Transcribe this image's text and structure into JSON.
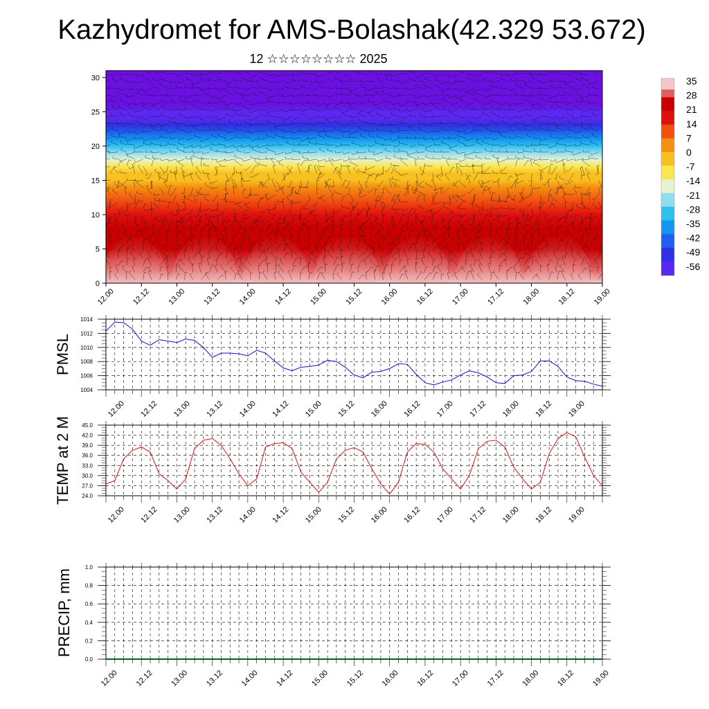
{
  "title": "Kazhydromet for AMS-Bolashak(42.329 53.672)",
  "subtitle": "12 ☆☆☆☆☆☆☆☆ 2025",
  "chart_data": [
    {
      "type": "heatmap",
      "name": "temperature-wind-cross-section",
      "y_ticks": [
        "0",
        "5",
        "10",
        "15",
        "20",
        "25",
        "30"
      ],
      "ylim": [
        0,
        31
      ],
      "x_ticks": [
        "12.00",
        "12.12",
        "13.00",
        "13.12",
        "14.00",
        "14.12",
        "15.00",
        "15.12",
        "16.00",
        "16.12",
        "17.00",
        "17.12",
        "18.00",
        "18.12",
        "19.00"
      ],
      "colorbar": {
        "ticks": [
          "35",
          "28",
          "21",
          "14",
          "7",
          "0",
          "-7",
          "-14",
          "-21",
          "-28",
          "-35",
          "-42",
          "-49",
          "-56"
        ],
        "range": [
          -63,
          38
        ]
      },
      "temperature_profile": {
        "levels": [
          0,
          2,
          5,
          8,
          10,
          12,
          14,
          15,
          16,
          17,
          18,
          19,
          20,
          21,
          22,
          23,
          24,
          25,
          26,
          27,
          31
        ],
        "values": [
          38,
          32,
          28,
          23,
          21,
          14,
          7,
          0,
          -5,
          -9,
          -14,
          -21,
          -28,
          -35,
          -42,
          -49,
          -56,
          -60,
          -63,
          -63,
          -63
        ]
      }
    },
    {
      "type": "line",
      "name": "pmsl",
      "ylabel": "PMSL",
      "y_ticks": [
        "1004",
        "1006",
        "1008",
        "1010",
        "1012",
        "1014"
      ],
      "ylim": [
        1004,
        1014
      ],
      "x_ticks": [
        "12.00",
        "12.12",
        "13.00",
        "13.12",
        "14.00",
        "14.12",
        "15.00",
        "15.12",
        "16.00",
        "16.12",
        "17.00",
        "17.12",
        "18.00",
        "18.12",
        "19.00"
      ],
      "color": "#1010d0",
      "values": [
        1012.3,
        1013.6,
        1013.5,
        1012.6,
        1010.9,
        1010.3,
        1011.1,
        1010.9,
        1010.7,
        1011.2,
        1011.0,
        1010.0,
        1008.6,
        1009.2,
        1009.2,
        1009.1,
        1008.8,
        1009.6,
        1009.2,
        1008.1,
        1007.1,
        1006.7,
        1007.2,
        1007.3,
        1007.5,
        1008.2,
        1008.0,
        1007.2,
        1006.1,
        1005.7,
        1006.5,
        1006.6,
        1007.0,
        1007.7,
        1007.6,
        1006.2,
        1005.0,
        1004.7,
        1005.1,
        1005.4,
        1006.1,
        1006.7,
        1006.4,
        1005.8,
        1005.0,
        1004.9,
        1006.0,
        1006.1,
        1006.6,
        1008.1,
        1008.1,
        1007.3,
        1005.8,
        1005.3,
        1005.2,
        1004.8,
        1004.5
      ]
    },
    {
      "type": "line",
      "name": "temp-2m",
      "ylabel": "TEMP at 2 M",
      "y_ticks": [
        "24.0",
        "27.0",
        "30.0",
        "33.0",
        "36.0",
        "39.0",
        "42.0",
        "45.0"
      ],
      "ylim": [
        24,
        45
      ],
      "x_ticks": [
        "12.00",
        "12.12",
        "13.00",
        "13.12",
        "14.00",
        "14.12",
        "15.00",
        "15.12",
        "16.00",
        "16.12",
        "17.00",
        "17.12",
        "18.00",
        "18.12",
        "19.00"
      ],
      "color": "#e01010",
      "values": [
        27.5,
        28.5,
        35.0,
        37.5,
        38.5,
        37.0,
        30.5,
        28.5,
        26.0,
        29.0,
        38.0,
        40.5,
        41.0,
        39.0,
        35.0,
        30.5,
        27.0,
        29.0,
        38.5,
        39.5,
        39.8,
        38.0,
        31.0,
        28.0,
        25.0,
        28.0,
        35.0,
        37.5,
        38.3,
        37.0,
        32.0,
        27.5,
        24.5,
        28.0,
        37.0,
        39.5,
        39.3,
        37.0,
        32.0,
        29.0,
        26.0,
        30.0,
        38.0,
        40.2,
        40.5,
        38.5,
        32.5,
        29.0,
        26.0,
        28.0,
        36.5,
        41.0,
        42.8,
        41.5,
        35.5,
        30.0,
        27.0
      ]
    },
    {
      "type": "line",
      "name": "precip",
      "ylabel": "PRECIP, mm",
      "y_ticks": [
        "0.0",
        "0.2",
        "0.4",
        "0.6",
        "0.8",
        "1.0"
      ],
      "ylim": [
        0,
        1
      ],
      "x_ticks": [
        "12.00",
        "12.12",
        "13.00",
        "13.12",
        "14.00",
        "14.12",
        "15.00",
        "15.12",
        "16.00",
        "16.12",
        "17.00",
        "17.12",
        "18.00",
        "18.12",
        "19.00"
      ],
      "color": "#0a5a2a",
      "values": [
        0,
        0,
        0,
        0,
        0,
        0,
        0,
        0,
        0,
        0,
        0,
        0,
        0,
        0,
        0,
        0,
        0,
        0,
        0,
        0,
        0,
        0,
        0,
        0,
        0,
        0,
        0,
        0,
        0,
        0,
        0,
        0,
        0,
        0,
        0,
        0,
        0,
        0,
        0,
        0,
        0,
        0,
        0,
        0,
        0,
        0,
        0,
        0,
        0,
        0,
        0,
        0,
        0,
        0,
        0,
        0,
        0
      ]
    }
  ]
}
